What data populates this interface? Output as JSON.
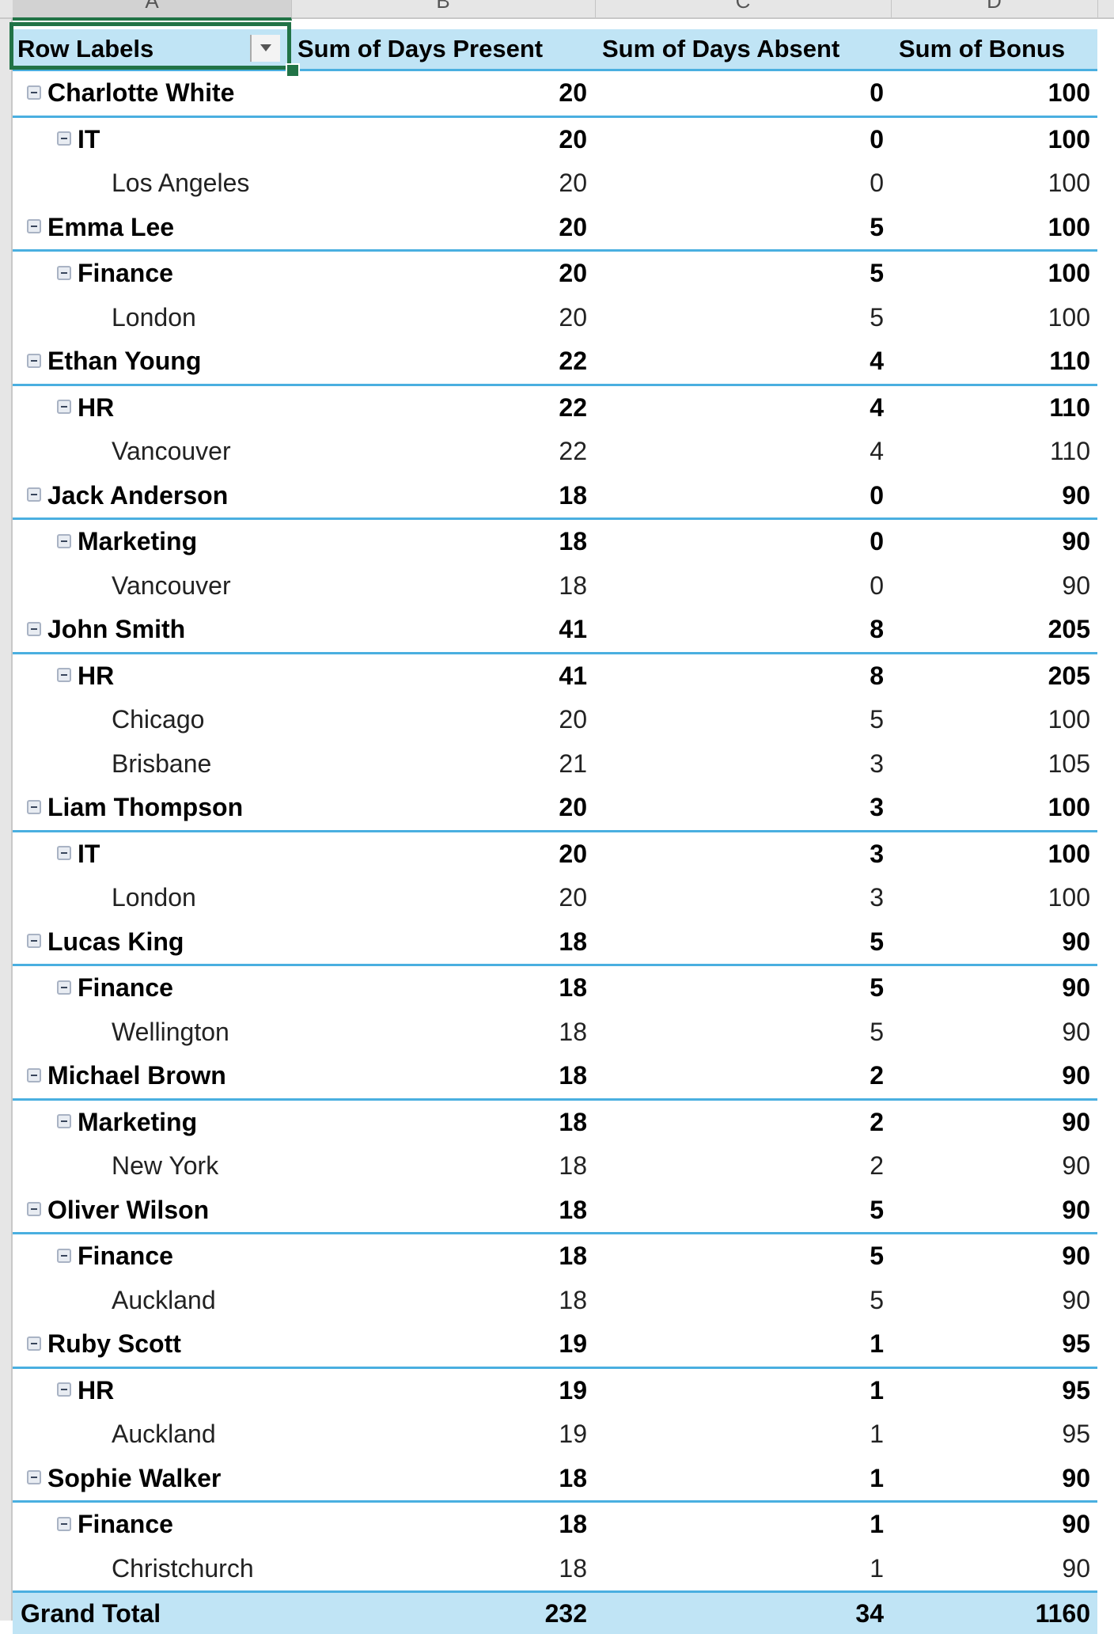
{
  "columns": [
    "A",
    "B",
    "C",
    "D"
  ],
  "headers": {
    "row_labels": "Row Labels",
    "days_present": "Sum of Days Present",
    "days_absent": "Sum of Days Absent",
    "bonus": "Sum of Bonus"
  },
  "rows": [
    {
      "level": 0,
      "label": "Charlotte White",
      "present": "20",
      "absent": "0",
      "bonus": "100"
    },
    {
      "level": 1,
      "label": "IT",
      "present": "20",
      "absent": "0",
      "bonus": "100"
    },
    {
      "level": 2,
      "label": "Los Angeles",
      "present": "20",
      "absent": "0",
      "bonus": "100"
    },
    {
      "level": 0,
      "label": "Emma Lee",
      "present": "20",
      "absent": "5",
      "bonus": "100"
    },
    {
      "level": 1,
      "label": "Finance",
      "present": "20",
      "absent": "5",
      "bonus": "100"
    },
    {
      "level": 2,
      "label": "London",
      "present": "20",
      "absent": "5",
      "bonus": "100"
    },
    {
      "level": 0,
      "label": "Ethan Young",
      "present": "22",
      "absent": "4",
      "bonus": "110"
    },
    {
      "level": 1,
      "label": "HR",
      "present": "22",
      "absent": "4",
      "bonus": "110"
    },
    {
      "level": 2,
      "label": "Vancouver",
      "present": "22",
      "absent": "4",
      "bonus": "110"
    },
    {
      "level": 0,
      "label": "Jack Anderson",
      "present": "18",
      "absent": "0",
      "bonus": "90"
    },
    {
      "level": 1,
      "label": "Marketing",
      "present": "18",
      "absent": "0",
      "bonus": "90"
    },
    {
      "level": 2,
      "label": "Vancouver",
      "present": "18",
      "absent": "0",
      "bonus": "90"
    },
    {
      "level": 0,
      "label": "John Smith",
      "present": "41",
      "absent": "8",
      "bonus": "205"
    },
    {
      "level": 1,
      "label": "HR",
      "present": "41",
      "absent": "8",
      "bonus": "205"
    },
    {
      "level": 2,
      "label": "Chicago",
      "present": "20",
      "absent": "5",
      "bonus": "100"
    },
    {
      "level": 2,
      "label": "Brisbane",
      "present": "21",
      "absent": "3",
      "bonus": "105"
    },
    {
      "level": 0,
      "label": "Liam Thompson",
      "present": "20",
      "absent": "3",
      "bonus": "100"
    },
    {
      "level": 1,
      "label": "IT",
      "present": "20",
      "absent": "3",
      "bonus": "100"
    },
    {
      "level": 2,
      "label": "London",
      "present": "20",
      "absent": "3",
      "bonus": "100"
    },
    {
      "level": 0,
      "label": "Lucas King",
      "present": "18",
      "absent": "5",
      "bonus": "90"
    },
    {
      "level": 1,
      "label": "Finance",
      "present": "18",
      "absent": "5",
      "bonus": "90"
    },
    {
      "level": 2,
      "label": "Wellington",
      "present": "18",
      "absent": "5",
      "bonus": "90"
    },
    {
      "level": 0,
      "label": "Michael Brown",
      "present": "18",
      "absent": "2",
      "bonus": "90"
    },
    {
      "level": 1,
      "label": "Marketing",
      "present": "18",
      "absent": "2",
      "bonus": "90"
    },
    {
      "level": 2,
      "label": "New York",
      "present": "18",
      "absent": "2",
      "bonus": "90"
    },
    {
      "level": 0,
      "label": "Oliver Wilson",
      "present": "18",
      "absent": "5",
      "bonus": "90"
    },
    {
      "level": 1,
      "label": "Finance",
      "present": "18",
      "absent": "5",
      "bonus": "90"
    },
    {
      "level": 2,
      "label": "Auckland",
      "present": "18",
      "absent": "5",
      "bonus": "90"
    },
    {
      "level": 0,
      "label": "Ruby Scott",
      "present": "19",
      "absent": "1",
      "bonus": "95"
    },
    {
      "level": 1,
      "label": "HR",
      "present": "19",
      "absent": "1",
      "bonus": "95"
    },
    {
      "level": 2,
      "label": "Auckland",
      "present": "19",
      "absent": "1",
      "bonus": "95"
    },
    {
      "level": 0,
      "label": "Sophie Walker",
      "present": "18",
      "absent": "1",
      "bonus": "90"
    },
    {
      "level": 1,
      "label": "Finance",
      "present": "18",
      "absent": "1",
      "bonus": "90"
    },
    {
      "level": 2,
      "label": "Christchurch",
      "present": "18",
      "absent": "1",
      "bonus": "90"
    }
  ],
  "grand_total": {
    "label": "Grand Total",
    "present": "232",
    "absent": "34",
    "bonus": "1160"
  },
  "colors": {
    "header_fill": "#c0e4f5",
    "row_border": "#4aafe0",
    "selection": "#217346"
  }
}
